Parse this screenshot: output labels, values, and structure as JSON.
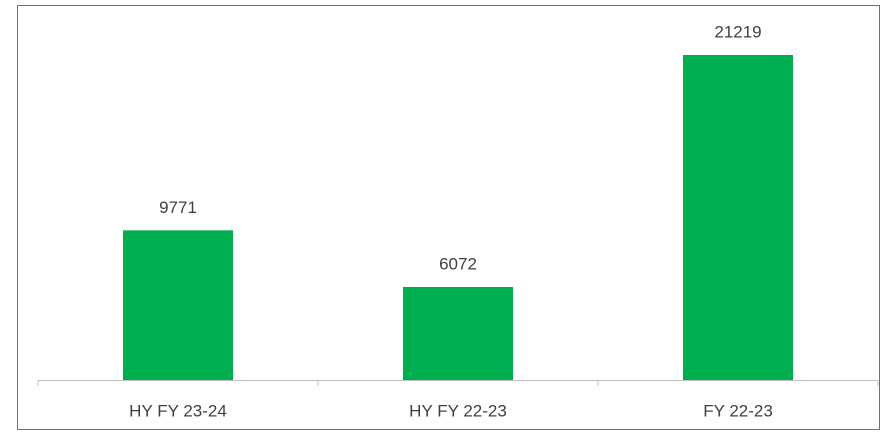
{
  "chart_data": {
    "type": "bar",
    "categories": [
      "HY FY 23-24",
      "HY FY 22-23",
      "FY 22-23"
    ],
    "values": [
      9771,
      6072,
      21219
    ],
    "color": "#00b050"
  }
}
